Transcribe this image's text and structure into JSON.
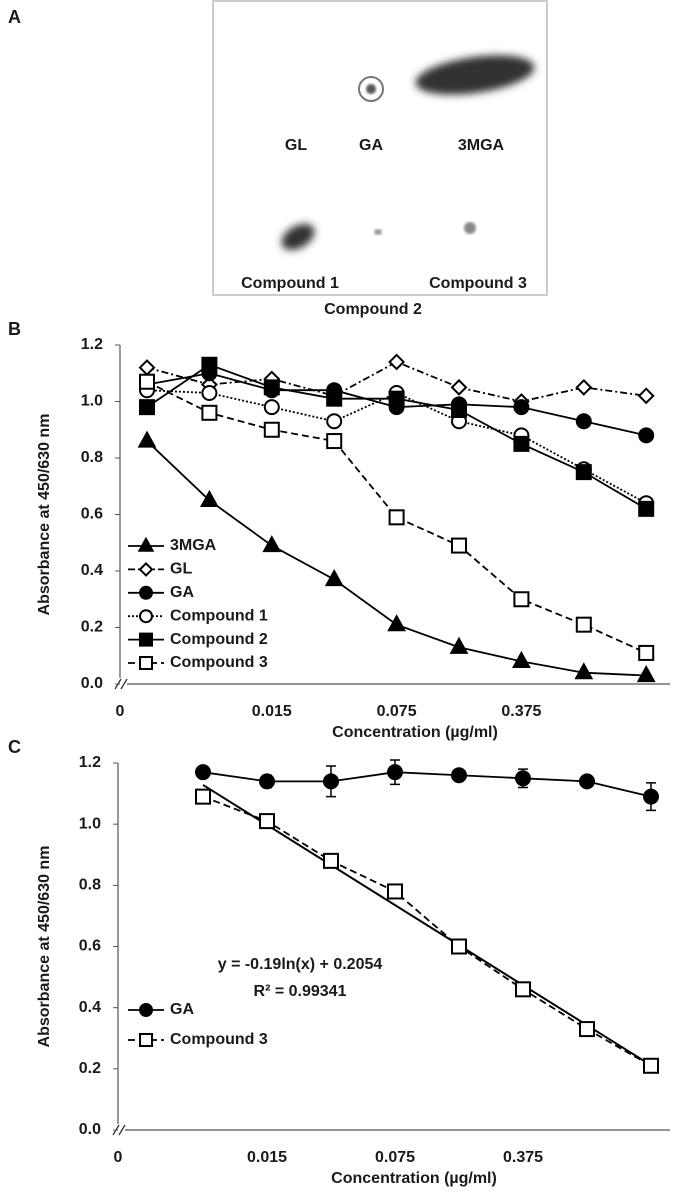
{
  "panel_a": {
    "label": "A",
    "spots": [
      "GL",
      "GA",
      "3MGA",
      "Compound 1",
      "Compound 3",
      "Compound 2"
    ]
  },
  "chart_data": [
    {
      "type": "line",
      "panel_label": "B",
      "y_label": "Absorbance at 450/630 nm",
      "x_label": "Concentration (µg/ml)",
      "x_origin_label": "0",
      "categories": [
        null,
        null,
        "0.015",
        null,
        "0.075",
        null,
        "0.375",
        null,
        null
      ],
      "ylim": [
        0,
        1.2
      ],
      "yticks": [
        {
          "value": 0,
          "label": "0.0"
        },
        0.2,
        0.4,
        0.6,
        0.8,
        {
          "value": 1,
          "label": "1.0"
        },
        1.2
      ],
      "series": [
        {
          "name": "3MGA",
          "color": "#000000",
          "marker": "triangle",
          "filled": true,
          "dash": "solid",
          "values": [
            0.86,
            0.65,
            0.49,
            0.37,
            0.21,
            0.13,
            0.08,
            0.04,
            0.03
          ]
        },
        {
          "name": "GL",
          "color": "#000000",
          "marker": "diamond",
          "filled": false,
          "dash": "dashdot",
          "values": [
            1.12,
            1.06,
            1.08,
            1.02,
            1.14,
            1.05,
            1.0,
            1.05,
            1.02
          ]
        },
        {
          "name": "GA",
          "color": "#000000",
          "marker": "circle",
          "filled": true,
          "dash": "solid",
          "values": [
            1.06,
            1.1,
            1.04,
            1.04,
            0.98,
            0.99,
            0.98,
            0.93,
            0.88
          ]
        },
        {
          "name": "Compound 1",
          "color": "#000000",
          "marker": "circle",
          "filled": false,
          "dash": "dotted",
          "values": [
            1.04,
            1.03,
            0.98,
            0.93,
            1.03,
            0.93,
            0.88,
            0.76,
            0.64
          ]
        },
        {
          "name": "Compound 2",
          "color": "#000000",
          "marker": "square",
          "filled": true,
          "dash": "solid",
          "values": [
            0.98,
            1.13,
            1.05,
            1.01,
            1.01,
            0.97,
            0.85,
            0.75,
            0.62
          ]
        },
        {
          "name": "Compound 3",
          "color": "#000000",
          "marker": "square",
          "filled": false,
          "dash": "dashed",
          "values": [
            1.07,
            0.96,
            0.9,
            0.86,
            0.59,
            0.49,
            0.3,
            0.21,
            0.11
          ]
        }
      ]
    },
    {
      "type": "line",
      "panel_label": "C",
      "y_label": "Absorbance at 450/630 nm",
      "x_label": "Concentration (µg/ml)",
      "x_origin_label": "0",
      "categories": [
        null,
        "0.015",
        null,
        "0.075",
        null,
        "0.375",
        null,
        null
      ],
      "ylim": [
        0,
        1.2
      ],
      "yticks": [
        {
          "value": 0,
          "label": "0.0"
        },
        0.2,
        0.4,
        0.6,
        0.8,
        {
          "value": 1,
          "label": "1.0"
        },
        1.2
      ],
      "annotations": [
        "y = -0.19ln(x) + 0.2054",
        "R² = 0.99341"
      ],
      "series": [
        {
          "name": "GA",
          "color": "#000000",
          "marker": "circle",
          "filled": true,
          "dash": "solid",
          "values": [
            1.17,
            1.14,
            1.14,
            1.17,
            1.16,
            1.15,
            1.14,
            1.09
          ],
          "errors": [
            0.01,
            0.02,
            0.05,
            0.04,
            0.01,
            0.03,
            0.01,
            0.045
          ]
        },
        {
          "name": "Compound 3",
          "color": "#000000",
          "marker": "square",
          "filled": false,
          "dash": "dashed",
          "trendline": true,
          "values": [
            1.09,
            1.01,
            0.88,
            0.78,
            0.6,
            0.46,
            0.33,
            0.21
          ]
        }
      ]
    }
  ]
}
